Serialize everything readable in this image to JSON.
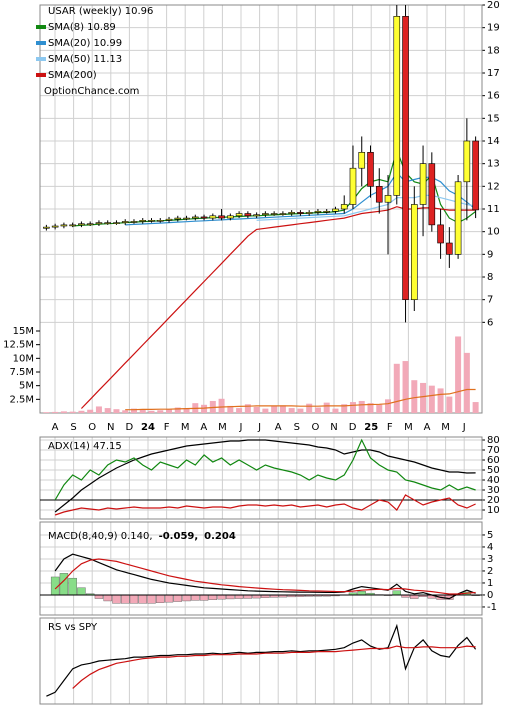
{
  "chart_data": [
    {
      "type": "candlestick",
      "title": "USAR (weekly) 10.96",
      "watermark": "OptionChance.com",
      "x_labels": [
        "A",
        "S",
        "O",
        "N",
        "D",
        "24",
        "F",
        "M",
        "A",
        "M",
        "J",
        "J",
        "A",
        "S",
        "O",
        "N",
        "D",
        "25",
        "F",
        "M",
        "A",
        "M",
        "J"
      ],
      "open": [
        10.15,
        10.2,
        10.25,
        10.3,
        10.3,
        10.35,
        10.35,
        10.4,
        10.4,
        10.4,
        10.45,
        10.45,
        10.5,
        10.5,
        10.5,
        10.55,
        10.6,
        10.6,
        10.65,
        10.6,
        10.7,
        10.6,
        10.7,
        10.8,
        10.7,
        10.75,
        10.8,
        10.8,
        10.8,
        10.85,
        10.8,
        10.85,
        10.9,
        10.9,
        11.0,
        11.2,
        12.8,
        13.5,
        12.0,
        11.3,
        11.6,
        19.5,
        7.0,
        11.2,
        13.0,
        10.3,
        9.5,
        9.0,
        12.2,
        14.0
      ],
      "high": [
        10.3,
        10.35,
        10.4,
        10.4,
        10.45,
        10.45,
        10.5,
        10.5,
        10.5,
        10.55,
        10.55,
        10.6,
        10.6,
        10.6,
        10.65,
        10.7,
        10.7,
        10.75,
        10.75,
        10.8,
        11.0,
        10.8,
        10.9,
        10.9,
        10.85,
        10.9,
        10.9,
        10.9,
        10.95,
        10.95,
        10.95,
        11.0,
        11.0,
        11.1,
        11.6,
        13.8,
        14.2,
        13.8,
        12.8,
        12.5,
        20.0,
        20.0,
        12.0,
        13.8,
        13.5,
        11.0,
        10.2,
        12.5,
        15.0,
        14.2
      ],
      "low": [
        10.05,
        10.1,
        10.15,
        10.2,
        10.2,
        10.25,
        10.25,
        10.3,
        10.3,
        10.3,
        10.35,
        10.35,
        10.4,
        10.4,
        10.4,
        10.45,
        10.5,
        10.5,
        10.5,
        10.5,
        10.5,
        10.5,
        10.6,
        10.6,
        10.6,
        10.65,
        10.7,
        10.7,
        10.7,
        10.7,
        10.7,
        10.75,
        10.8,
        10.8,
        10.8,
        11.0,
        12.0,
        11.5,
        10.8,
        9.0,
        11.2,
        6.0,
        6.5,
        9.8,
        10.0,
        8.8,
        8.4,
        8.8,
        10.5,
        10.6
      ],
      "close": [
        10.2,
        10.25,
        10.3,
        10.3,
        10.35,
        10.35,
        10.4,
        10.4,
        10.4,
        10.45,
        10.45,
        10.5,
        10.5,
        10.5,
        10.55,
        10.6,
        10.6,
        10.65,
        10.6,
        10.7,
        10.6,
        10.7,
        10.8,
        10.7,
        10.75,
        10.8,
        10.8,
        10.8,
        10.85,
        10.8,
        10.85,
        10.9,
        10.9,
        11.0,
        11.2,
        12.8,
        13.5,
        12.0,
        11.3,
        11.6,
        19.5,
        7.0,
        11.2,
        13.0,
        10.3,
        9.5,
        9.0,
        12.2,
        14.0,
        10.96
      ],
      "up_color": "#ffff33",
      "down_color": "#dd2222",
      "series": [
        {
          "name": "SMA(8) 10.89",
          "color": "#118811",
          "values": [
            null,
            null,
            null,
            10.25,
            10.28,
            10.3,
            10.33,
            10.35,
            10.37,
            10.4,
            10.42,
            10.44,
            10.46,
            10.48,
            10.5,
            10.52,
            10.55,
            10.57,
            10.6,
            10.62,
            10.63,
            10.65,
            10.67,
            10.69,
            10.7,
            10.72,
            10.74,
            10.76,
            10.78,
            10.8,
            10.82,
            10.84,
            10.85,
            10.88,
            10.95,
            11.4,
            11.9,
            12.2,
            12.3,
            12.2,
            13.6,
            12.6,
            12.2,
            12.1,
            12.5,
            11.2,
            10.6,
            10.4,
            10.6,
            10.89
          ]
        },
        {
          "name": "SMA(20) 10.99",
          "color": "#2f8fd0",
          "values": [
            null,
            null,
            null,
            null,
            null,
            null,
            null,
            null,
            null,
            10.3,
            10.32,
            10.34,
            10.36,
            10.38,
            10.4,
            10.42,
            10.44,
            10.46,
            10.48,
            10.5,
            10.52,
            10.54,
            10.56,
            10.58,
            10.6,
            10.62,
            10.64,
            10.66,
            10.68,
            10.7,
            10.72,
            10.74,
            10.76,
            10.78,
            10.8,
            11.0,
            11.3,
            11.6,
            11.8,
            12.0,
            12.6,
            12.2,
            12.3,
            12.4,
            12.4,
            12.2,
            11.8,
            11.6,
            11.3,
            10.99
          ]
        },
        {
          "name": "SMA(50) 11.13",
          "color": "#8cc8f0",
          "values": [
            null,
            null,
            null,
            null,
            null,
            null,
            null,
            null,
            null,
            null,
            null,
            null,
            null,
            null,
            null,
            null,
            null,
            null,
            null,
            null,
            null,
            null,
            null,
            null,
            10.5,
            10.52,
            10.54,
            10.56,
            10.58,
            10.6,
            10.62,
            10.64,
            10.66,
            10.68,
            10.7,
            10.8,
            10.9,
            11.0,
            11.1,
            11.2,
            11.5,
            11.5,
            11.5,
            11.6,
            11.6,
            11.5,
            11.4,
            11.3,
            11.2,
            11.13
          ]
        },
        {
          "name": "SMA(200)",
          "color": "#cc1111",
          "values": [
            null,
            null,
            null,
            null,
            2.2,
            2.6,
            3.0,
            3.4,
            3.8,
            4.2,
            4.6,
            5.0,
            5.4,
            5.8,
            6.2,
            6.6,
            7.0,
            7.4,
            7.8,
            8.2,
            8.6,
            9.0,
            9.4,
            9.8,
            10.1,
            10.15,
            10.2,
            10.25,
            10.3,
            10.35,
            10.4,
            10.45,
            10.5,
            10.55,
            10.6,
            10.7,
            10.8,
            10.85,
            10.9,
            10.95,
            11.1,
            11.0,
            11.0,
            11.05,
            11.05,
            11.0,
            10.95,
            10.95,
            10.95,
            10.95
          ]
        }
      ],
      "ylim": [
        2,
        20
      ],
      "yticks": [
        6,
        7,
        8,
        9,
        10,
        11,
        12,
        13,
        14,
        15,
        16,
        17,
        18,
        19,
        20
      ],
      "grid": true,
      "volume": {
        "color": "#f2a9b8",
        "line_color": "#e0701e",
        "values": [
          150000,
          200000,
          300000,
          250000,
          400000,
          600000,
          1200000,
          900000,
          700000,
          500000,
          800000,
          600000,
          400000,
          500000,
          700000,
          1000000,
          900000,
          1800000,
          1500000,
          2200000,
          2600000,
          1300000,
          900000,
          1600000,
          1100000,
          800000,
          1200000,
          1400000,
          900000,
          800000,
          1700000,
          1000000,
          1900000,
          800000,
          1600000,
          2000000,
          2200000,
          1800000,
          1500000,
          2500000,
          9000000,
          9500000,
          6000000,
          5500000,
          5000000,
          4500000,
          3000000,
          14000000,
          11000000,
          2000000
        ],
        "average": [
          null,
          null,
          null,
          null,
          null,
          null,
          null,
          null,
          null,
          600000,
          600000,
          650000,
          650000,
          700000,
          700000,
          750000,
          800000,
          850000,
          900000,
          1000000,
          1100000,
          1150000,
          1200000,
          1250000,
          1300000,
          1300000,
          1300000,
          1300000,
          1300000,
          1250000,
          1250000,
          1250000,
          1300000,
          1300000,
          1300000,
          1400000,
          1500000,
          1550000,
          1600000,
          1700000,
          2100000,
          2500000,
          2800000,
          3000000,
          3200000,
          3400000,
          3500000,
          3900000,
          4300000,
          4300000
        ],
        "y2lim": [
          0,
          15000000
        ],
        "y2ticks": [
          {
            "value": 2500000,
            "label": "2.5M"
          },
          {
            "value": 5000000,
            "label": "5M"
          },
          {
            "value": 7500000,
            "label": "7.5M"
          },
          {
            "value": 10000000,
            "label": "10M"
          },
          {
            "value": 12500000,
            "label": "12.5M"
          },
          {
            "value": 15000000,
            "label": "15M"
          }
        ]
      }
    },
    {
      "type": "line",
      "title": "ADX(14) 47.15",
      "ylim": [
        1,
        83
      ],
      "yticks": [
        10,
        20,
        30,
        40,
        50,
        60,
        70,
        80
      ],
      "grid": true,
      "reference_line": 20,
      "series": [
        {
          "color": "#000000",
          "values": [
            null,
            8,
            15,
            22,
            30,
            36,
            42,
            47,
            52,
            56,
            60,
            63,
            66,
            68,
            70,
            72,
            74,
            75,
            76,
            77,
            78,
            79,
            79,
            80,
            80,
            80,
            79,
            78,
            77,
            76,
            75,
            73,
            72,
            70,
            66,
            68,
            70,
            70,
            68,
            64,
            62,
            60,
            58,
            55,
            52,
            50,
            48,
            48,
            47,
            47.15
          ]
        },
        {
          "color": "#118811",
          "values": [
            null,
            20,
            35,
            45,
            40,
            50,
            45,
            55,
            60,
            58,
            62,
            55,
            50,
            58,
            55,
            52,
            60,
            55,
            65,
            58,
            62,
            55,
            60,
            55,
            50,
            55,
            52,
            50,
            48,
            45,
            40,
            45,
            42,
            40,
            45,
            60,
            80,
            62,
            55,
            50,
            48,
            40,
            38,
            35,
            32,
            30,
            35,
            30,
            33,
            30
          ]
        },
        {
          "color": "#cc1111",
          "values": [
            null,
            5,
            8,
            10,
            12,
            11,
            10,
            12,
            11,
            12,
            13,
            12,
            12,
            12,
            13,
            12,
            14,
            13,
            12,
            13,
            13,
            12,
            14,
            15,
            15,
            14,
            15,
            14,
            15,
            13,
            14,
            15,
            13,
            15,
            16,
            12,
            10,
            15,
            20,
            18,
            10,
            25,
            20,
            15,
            18,
            20,
            22,
            15,
            12,
            16
          ]
        }
      ]
    },
    {
      "type": "macd",
      "title": "MACD(8,40,9) 0.140,",
      "histogram_label": "-0.059,",
      "signal_label": "0.204",
      "ylim": [
        -1.67,
        6.08
      ],
      "yticks": [
        -1,
        0,
        1,
        2,
        3,
        4,
        5
      ],
      "grid": true,
      "up_color": "#88dd88",
      "down_color": "#f2a9b8",
      "series": [
        {
          "color": "#000000",
          "values": [
            null,
            2.0,
            3.0,
            3.4,
            3.2,
            3.0,
            2.7,
            2.4,
            2.1,
            1.9,
            1.7,
            1.5,
            1.3,
            1.15,
            1.0,
            0.9,
            0.8,
            0.7,
            0.6,
            0.55,
            0.5,
            0.45,
            0.4,
            0.35,
            0.32,
            0.3,
            0.28,
            0.26,
            0.25,
            0.24,
            0.23,
            0.22,
            0.21,
            0.21,
            0.25,
            0.5,
            0.7,
            0.6,
            0.5,
            0.4,
            0.9,
            0.3,
            0.1,
            0.2,
            0.0,
            -0.2,
            -0.3,
            0.1,
            0.4,
            0.14
          ]
        },
        {
          "color": "#cc1111",
          "values": [
            null,
            0.5,
            1.2,
            2.0,
            2.6,
            2.9,
            3.0,
            2.9,
            2.8,
            2.6,
            2.4,
            2.2,
            2.0,
            1.8,
            1.6,
            1.45,
            1.3,
            1.15,
            1.05,
            0.95,
            0.85,
            0.78,
            0.7,
            0.64,
            0.58,
            0.53,
            0.48,
            0.44,
            0.41,
            0.38,
            0.35,
            0.33,
            0.31,
            0.29,
            0.28,
            0.32,
            0.4,
            0.45,
            0.47,
            0.45,
            0.55,
            0.5,
            0.4,
            0.35,
            0.28,
            0.18,
            0.08,
            0.08,
            0.15,
            0.204
          ]
        }
      ],
      "histogram": [
        null,
        1.5,
        1.8,
        1.4,
        0.6,
        0.1,
        -0.3,
        -0.5,
        -0.7,
        -0.7,
        -0.7,
        -0.7,
        -0.7,
        -0.65,
        -0.6,
        -0.55,
        -0.5,
        -0.45,
        -0.45,
        -0.4,
        -0.35,
        -0.33,
        -0.3,
        -0.29,
        -0.26,
        -0.23,
        -0.2,
        -0.18,
        -0.16,
        -0.14,
        -0.12,
        -0.11,
        -0.1,
        -0.08,
        -0.03,
        0.18,
        0.3,
        0.15,
        0.03,
        -0.05,
        0.35,
        -0.2,
        -0.3,
        -0.15,
        -0.28,
        -0.38,
        -0.38,
        0.02,
        0.25,
        -0.059
      ]
    },
    {
      "type": "line",
      "title": "RS vs SPY",
      "ylim": [
        0,
        1.1
      ],
      "grid": false,
      "series": [
        {
          "color": "#000000",
          "values": [
            0.1,
            0.15,
            0.3,
            0.45,
            0.5,
            0.52,
            0.55,
            0.56,
            0.57,
            0.58,
            0.6,
            0.6,
            0.61,
            0.62,
            0.62,
            0.63,
            0.63,
            0.64,
            0.64,
            0.65,
            0.64,
            0.65,
            0.66,
            0.65,
            0.66,
            0.66,
            0.67,
            0.67,
            0.68,
            0.67,
            0.68,
            0.68,
            0.69,
            0.7,
            0.72,
            0.78,
            0.82,
            0.74,
            0.7,
            0.72,
            1.0,
            0.45,
            0.72,
            0.82,
            0.68,
            0.62,
            0.6,
            0.75,
            0.85,
            0.7
          ]
        },
        {
          "color": "#cc1111",
          "values": [
            null,
            null,
            null,
            0.2,
            0.3,
            0.38,
            0.44,
            0.48,
            0.52,
            0.54,
            0.56,
            0.58,
            0.59,
            0.6,
            0.6,
            0.61,
            0.61,
            0.62,
            0.62,
            0.63,
            0.63,
            0.63,
            0.64,
            0.64,
            0.64,
            0.65,
            0.65,
            0.65,
            0.66,
            0.66,
            0.66,
            0.67,
            0.67,
            0.67,
            0.68,
            0.69,
            0.7,
            0.71,
            0.71,
            0.71,
            0.74,
            0.72,
            0.72,
            0.73,
            0.73,
            0.72,
            0.72,
            0.72,
            0.74,
            0.73
          ]
        }
      ]
    }
  ]
}
